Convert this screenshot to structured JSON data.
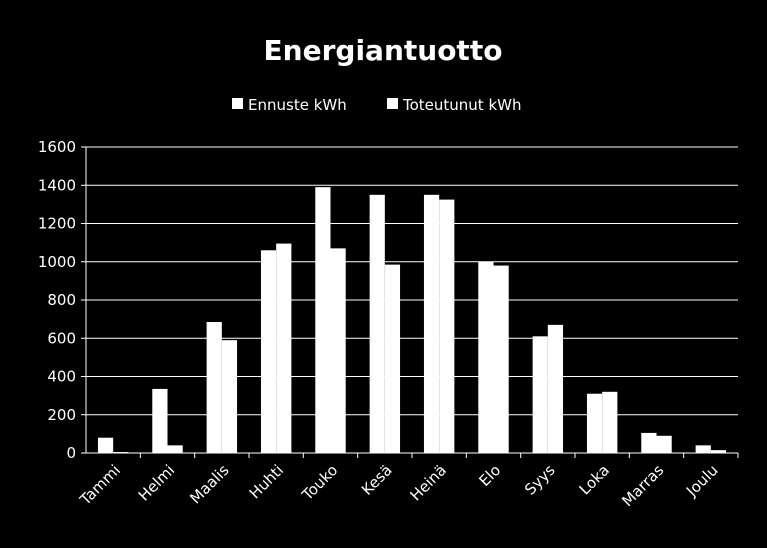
{
  "chart_data": {
    "type": "bar",
    "title": "Energiantuotto",
    "xlabel": "",
    "ylabel": "",
    "categories": [
      "Tammi",
      "Helmi",
      "Maalis",
      "Huhti",
      "Touko",
      "Kesä",
      "Heinä",
      "Elo",
      "Syys",
      "Loka",
      "Marras",
      "Joulu"
    ],
    "series": [
      {
        "name": "Ennuste kWh",
        "values": [
          80,
          335,
          685,
          1060,
          1390,
          1350,
          1350,
          1000,
          610,
          310,
          105,
          40
        ]
      },
      {
        "name": "Toteutunut kWh",
        "values": [
          5,
          40,
          590,
          1095,
          1070,
          985,
          1325,
          980,
          670,
          320,
          90,
          15
        ]
      }
    ],
    "ylim": [
      0,
      1600
    ],
    "yticks": [
      0,
      200,
      400,
      600,
      800,
      1000,
      1200,
      1400,
      1600
    ],
    "grid": true,
    "legend_position": "top",
    "colors": {
      "background": "#000000",
      "bars": "#ffffff",
      "text": "#ffffff",
      "grid": "#ffffff"
    }
  }
}
